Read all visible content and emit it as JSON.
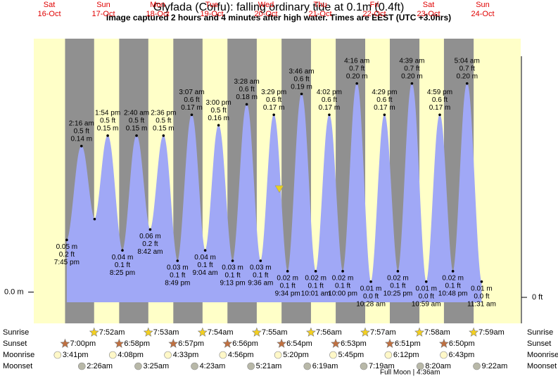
{
  "chart_data": {
    "type": "tide",
    "title": "Glyfada (Corfu): falling  ordinary tide at 0.1m (0.4ft)",
    "subtitle": "Image captured 2 hours and 4 minutes after high water. Times are EEST (UTC +3.0hrs)",
    "days": [
      {
        "name": "Sat",
        "date": "16-Oct"
      },
      {
        "name": "Sun",
        "date": "17-Oct"
      },
      {
        "name": "Mon",
        "date": "18-Oct"
      },
      {
        "name": "Tue",
        "date": "19-Oct"
      },
      {
        "name": "Wed",
        "date": "20-Oct"
      },
      {
        "name": "Thu",
        "date": "21-Oct"
      },
      {
        "name": "Fri",
        "date": "22-Oct"
      },
      {
        "name": "Sat",
        "date": "23-Oct"
      },
      {
        "name": "Sun",
        "date": "24-Oct"
      }
    ],
    "x": [
      "7:45 pm",
      "2:16 am",
      null,
      "1:54 pm",
      "8:25 pm",
      "2:40 am",
      "8:42 am",
      "2:36 pm",
      "8:49 pm",
      "3:07 am",
      "9:04 am",
      "3:00 pm",
      "9:13 pm",
      "3:28 am",
      "9:36 am",
      "3:29 pm",
      "9:34 pm",
      "3:46 am",
      "10:01 am",
      "4:02 pm",
      "10:00 pm",
      "4:16 am",
      "10:28 am",
      "4:29 pm",
      "10:25 pm",
      "4:39 am",
      "10:59 am",
      "4:59 pm",
      "10:48 pm",
      "5:04 am",
      "11:31 am"
    ],
    "values": [
      0.05,
      0.14,
      0.07,
      0.15,
      0.04,
      0.15,
      0.06,
      0.15,
      0.03,
      0.17,
      0.04,
      0.16,
      0.03,
      0.18,
      0.03,
      0.17,
      0.02,
      0.19,
      0.02,
      0.17,
      0.02,
      0.2,
      0.01,
      0.17,
      0.02,
      0.2,
      0.01,
      0.17,
      0.02,
      0.2,
      0.01
    ],
    "value_labels": [
      "0.05 m",
      "0.14 m",
      null,
      "0.15 m",
      "0.04 m",
      "0.15 m",
      "0.06 m",
      "0.15 m",
      "0.03 m",
      "0.17 m",
      "0.04 m",
      "0.16 m",
      "0.03 m",
      "0.18 m",
      "0.03 m",
      "0.17 m",
      "0.02 m",
      "0.19 m",
      "0.02 m",
      "0.17 m",
      "0.02 m",
      "0.20 m",
      "0.01 m",
      "0.17 m",
      "0.02 m",
      "0.20 m",
      "0.01 m",
      "0.17 m",
      "0.02 m",
      "0.20 m",
      "0.01 m"
    ],
    "ft_labels": [
      "0.2 ft",
      "0.5 ft",
      null,
      "0.5 ft",
      "0.1 ft",
      "0.5 ft",
      "0.2 ft",
      "0.5 ft",
      "0.1 ft",
      "0.6 ft",
      "0.1 ft",
      "0.5 ft",
      "0.1 ft",
      "0.6 ft",
      "0.1 ft",
      "0.6 ft",
      "0.1 ft",
      "0.6 ft",
      "0.1 ft",
      "0.6 ft",
      "0.1 ft",
      "0.7 ft",
      "0.0 ft",
      "0.6 ft",
      "0.1 ft",
      "0.7 ft",
      "0.0 ft",
      "0.6 ft",
      "0.1 ft",
      "0.7 ft",
      "0.0 ft"
    ],
    "color": "#a0a8f6",
    "ylim": [
      -0.03,
      0.243
    ],
    "yticks": [
      {
        "value": 0,
        "label": "0.0 m"
      }
    ],
    "y2lim": [
      -0.082,
      0.816
    ],
    "y2ticks": [
      {
        "value": 0,
        "label": "0 ft"
      }
    ],
    "rows": [
      {
        "label": "Sunrise",
        "times": [
          "7:52am",
          "7:53am",
          "7:54am",
          "7:55am",
          "7:56am",
          "7:57am",
          "7:58am",
          "7:59am"
        ]
      },
      {
        "label": "Sunset",
        "times": [
          "7:00pm",
          "6:58pm",
          "6:57pm",
          "6:56pm",
          "6:54pm",
          "6:53pm",
          "6:51pm",
          "6:50pm"
        ]
      },
      {
        "label": "Moonrise",
        "times": [
          "3:41pm",
          "4:08pm",
          "4:33pm",
          "4:56pm",
          "5:20pm",
          "5:45pm",
          "6:12pm",
          "6:43pm"
        ]
      },
      {
        "label": "Moonset",
        "times": [
          "2:26am",
          "3:25am",
          "4:23am",
          "5:21am",
          "6:19am",
          "7:19am",
          "8:20am",
          "9:22am"
        ]
      }
    ],
    "moon_phase": "Full Moon | 4:36am"
  }
}
